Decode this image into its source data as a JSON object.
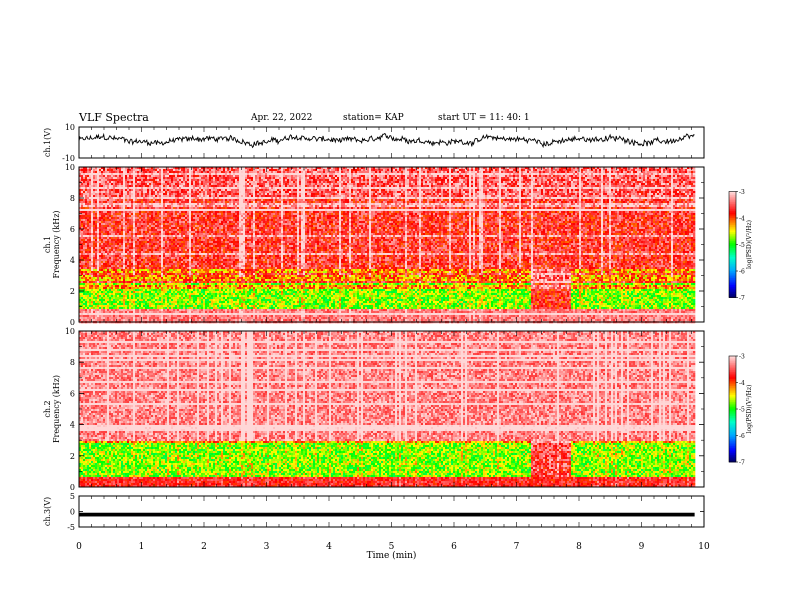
{
  "header": {
    "title": "VLF Spectra",
    "date": "Apr. 22, 2022",
    "station": "station= KAP",
    "start": "start  UT =   11: 40: 1"
  },
  "chart_data": [
    {
      "type": "line",
      "panel": "ch1-waveform",
      "ylabel": "ch.1(V)",
      "ylim": [
        -10,
        10
      ],
      "yticks": [
        "10",
        "-10"
      ],
      "xlim": [
        0,
        10
      ],
      "note": "noisy signal oscillating roughly between -3 and 6 V across 0–9.85 min"
    },
    {
      "type": "heatmap",
      "panel": "ch1-spectrogram",
      "ylabel": "ch.1",
      "ylabel2": "Frequency (kHz)",
      "ylim": [
        0,
        10
      ],
      "yticks": [
        "0",
        "2",
        "4",
        "6",
        "8",
        "10"
      ],
      "xlim": [
        0,
        9.85
      ],
      "colorbar": {
        "label": "log(PSD)(V²/Hz)",
        "ticks": [
          "-3",
          "-4",
          "-5",
          "-6",
          "-7"
        ],
        "range": [
          -7,
          -3
        ]
      }
    },
    {
      "type": "heatmap",
      "panel": "ch2-spectrogram",
      "ylabel": "ch.2",
      "ylabel2": "Frequency (kHz)",
      "ylim": [
        0,
        10
      ],
      "yticks": [
        "0",
        "2",
        "4",
        "6",
        "8",
        "10"
      ],
      "xlim": [
        0,
        9.85
      ],
      "colorbar": {
        "label": "log(PSD)(V²/Hz)",
        "ticks": [
          "-3",
          "-4",
          "-5",
          "-6",
          "-7"
        ],
        "range": [
          -7,
          -3
        ]
      }
    },
    {
      "type": "line",
      "panel": "ch3-waveform",
      "ylabel": "ch.3(V)",
      "ylim": [
        -5,
        5
      ],
      "yticks": [
        "5",
        "0",
        "-5"
      ],
      "xlim": [
        0,
        10
      ],
      "note": "flat band near -1 V from 0 to 9.85 min"
    }
  ],
  "xaxis": {
    "label": "Time (min)",
    "ticks": [
      "0",
      "1",
      "2",
      "3",
      "4",
      "5",
      "6",
      "7",
      "8",
      "9",
      "10"
    ]
  },
  "colors": {
    "scale": [
      "#000088",
      "#0000ff",
      "#00a0ff",
      "#00ffcc",
      "#00ff00",
      "#ffff00",
      "#ff0000",
      "#ffd0d0"
    ]
  }
}
